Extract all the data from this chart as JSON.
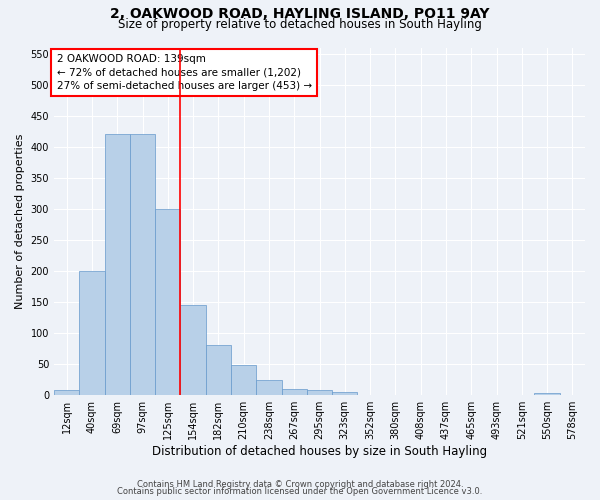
{
  "title": "2, OAKWOOD ROAD, HAYLING ISLAND, PO11 9AY",
  "subtitle": "Size of property relative to detached houses in South Hayling",
  "xlabel": "Distribution of detached houses by size in South Hayling",
  "ylabel": "Number of detached properties",
  "bar_labels": [
    "12sqm",
    "40sqm",
    "69sqm",
    "97sqm",
    "125sqm",
    "154sqm",
    "182sqm",
    "210sqm",
    "238sqm",
    "267sqm",
    "295sqm",
    "323sqm",
    "352sqm",
    "380sqm",
    "408sqm",
    "437sqm",
    "465sqm",
    "493sqm",
    "521sqm",
    "550sqm",
    "578sqm"
  ],
  "bar_values": [
    8,
    200,
    420,
    420,
    300,
    145,
    80,
    48,
    23,
    10,
    7,
    5,
    0,
    0,
    0,
    0,
    0,
    0,
    0,
    2,
    0
  ],
  "bar_color": "#b8d0e8",
  "bar_edge_color": "#6699cc",
  "ylim": [
    0,
    560
  ],
  "yticks": [
    0,
    50,
    100,
    150,
    200,
    250,
    300,
    350,
    400,
    450,
    500,
    550
  ],
  "annotation_line1": "2 OAKWOOD ROAD: 139sqm",
  "annotation_line2": "← 72% of detached houses are smaller (1,202)",
  "annotation_line3": "27% of semi-detached houses are larger (453) →",
  "footer_line1": "Contains HM Land Registry data © Crown copyright and database right 2024.",
  "footer_line2": "Contains public sector information licensed under the Open Government Licence v3.0.",
  "bg_color": "#eef2f8",
  "grid_color": "#ffffff",
  "title_fontsize": 10,
  "subtitle_fontsize": 8.5,
  "annotation_fontsize": 7.5,
  "ylabel_fontsize": 8,
  "xlabel_fontsize": 8.5,
  "tick_fontsize": 7,
  "footer_fontsize": 6
}
